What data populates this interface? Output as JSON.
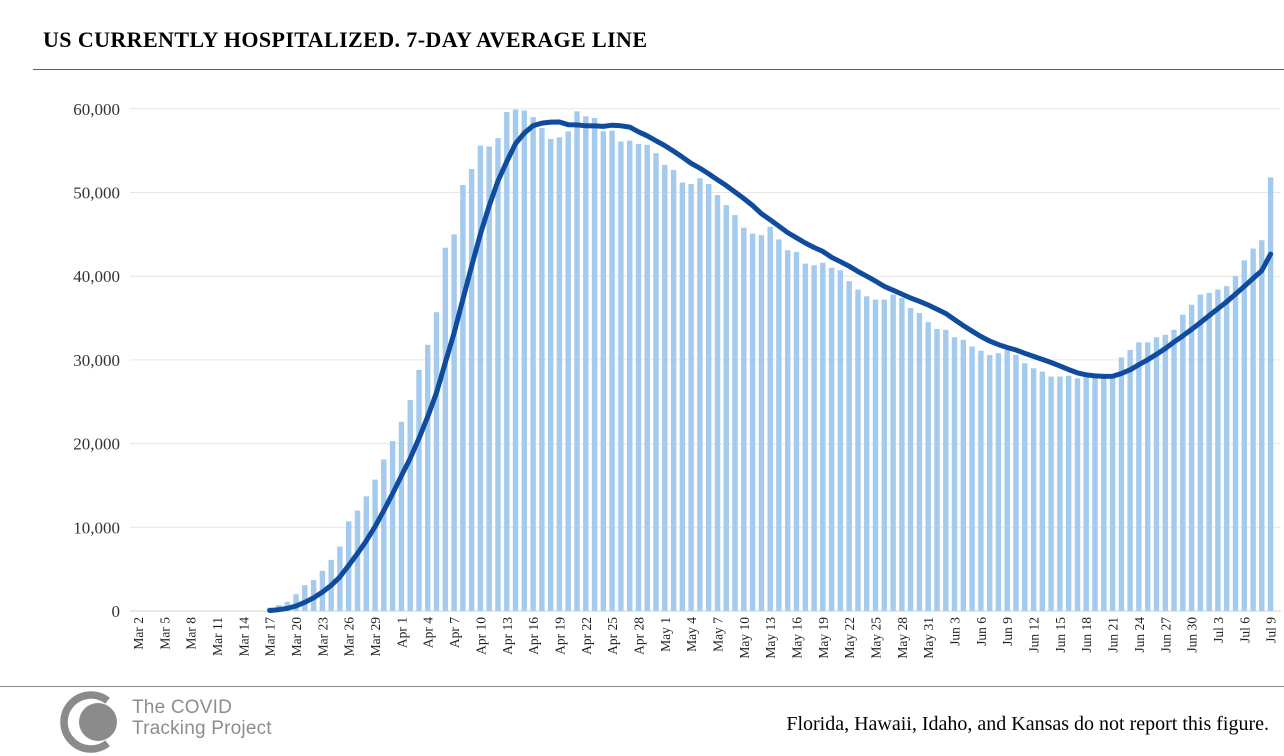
{
  "page": {
    "title": "US CURRENTLY HOSPITALIZED. 7-DAY AVERAGE LINE"
  },
  "chart_data": {
    "type": "bar",
    "title": "US CURRENTLY HOSPITALIZED. 7-DAY AVERAGE LINE",
    "xlabel": "",
    "ylabel": "",
    "ylim": [
      0,
      60000
    ],
    "y_tick_step": 10000,
    "y_tick_labels": [
      "0",
      "10,000",
      "20,000",
      "30,000",
      "40,000",
      "50,000",
      "60,000"
    ],
    "x_tick_every": 3,
    "grid": true,
    "legend": "none",
    "series": [
      {
        "name": "US currently hospitalized (daily)",
        "type": "bar",
        "color": "#A4CAED"
      },
      {
        "name": "7-day average line",
        "type": "line",
        "color": "#0F4C9E",
        "derived": "trailing-7-day-mean",
        "start_index": 15
      }
    ],
    "x": [
      "Mar 2",
      "Mar 3",
      "Mar 4",
      "Mar 5",
      "Mar 6",
      "Mar 7",
      "Mar 8",
      "Mar 9",
      "Mar 10",
      "Mar 11",
      "Mar 12",
      "Mar 13",
      "Mar 14",
      "Mar 15",
      "Mar 16",
      "Mar 17",
      "Mar 18",
      "Mar 19",
      "Mar 20",
      "Mar 21",
      "Mar 22",
      "Mar 23",
      "Mar 24",
      "Mar 25",
      "Mar 26",
      "Mar 27",
      "Mar 28",
      "Mar 29",
      "Mar 30",
      "Mar 31",
      "Apr 1",
      "Apr 2",
      "Apr 3",
      "Apr 4",
      "Apr 5",
      "Apr 6",
      "Apr 7",
      "Apr 8",
      "Apr 9",
      "Apr 10",
      "Apr 11",
      "Apr 12",
      "Apr 13",
      "Apr 14",
      "Apr 15",
      "Apr 16",
      "Apr 17",
      "Apr 18",
      "Apr 19",
      "Apr 20",
      "Apr 21",
      "Apr 22",
      "Apr 23",
      "Apr 24",
      "Apr 25",
      "Apr 26",
      "Apr 27",
      "Apr 28",
      "Apr 29",
      "Apr 30",
      "May 1",
      "May 2",
      "May 3",
      "May 4",
      "May 5",
      "May 6",
      "May 7",
      "May 8",
      "May 9",
      "May 10",
      "May 11",
      "May 12",
      "May 13",
      "May 14",
      "May 15",
      "May 16",
      "May 17",
      "May 18",
      "May 19",
      "May 20",
      "May 21",
      "May 22",
      "May 23",
      "May 24",
      "May 25",
      "May 26",
      "May 27",
      "May 28",
      "May 29",
      "May 30",
      "May 31",
      "Jun 1",
      "Jun 2",
      "Jun 3",
      "Jun 4",
      "Jun 5",
      "Jun 6",
      "Jun 7",
      "Jun 8",
      "Jun 9",
      "Jun 10",
      "Jun 11",
      "Jun 12",
      "Jun 13",
      "Jun 14",
      "Jun 15",
      "Jun 16",
      "Jun 17",
      "Jun 18",
      "Jun 19",
      "Jun 20",
      "Jun 21",
      "Jun 22",
      "Jun 23",
      "Jun 24",
      "Jun 25",
      "Jun 26",
      "Jun 27",
      "Jun 28",
      "Jun 29",
      "Jun 30",
      "Jul 1",
      "Jul 2",
      "Jul 3",
      "Jul 4",
      "Jul 5",
      "Jul 6",
      "Jul 7",
      "Jul 8",
      "Jul 9"
    ],
    "values": [
      0,
      0,
      0,
      0,
      0,
      0,
      0,
      0,
      0,
      0,
      0,
      0,
      0,
      0,
      0,
      400,
      700,
      1100,
      2000,
      3100,
      3700,
      4800,
      6100,
      7700,
      10700,
      12000,
      13700,
      15700,
      18100,
      20300,
      22600,
      25200,
      28800,
      31800,
      35700,
      43400,
      45000,
      50900,
      52800,
      55600,
      55500,
      56500,
      59600,
      59900,
      59800,
      59000,
      57700,
      56400,
      56600,
      57300,
      59700,
      59100,
      58900,
      57300,
      57400,
      56100,
      56200,
      55800,
      55700,
      54700,
      53300,
      52700,
      51200,
      51000,
      51700,
      51000,
      49700,
      48500,
      47300,
      45800,
      45100,
      44900,
      45900,
      44400,
      43100,
      42900,
      41500,
      41300,
      41600,
      41000,
      40700,
      39400,
      38400,
      37600,
      37200,
      37200,
      37800,
      37400,
      36200,
      35600,
      34500,
      33700,
      33600,
      32700,
      32400,
      31600,
      31100,
      30600,
      30800,
      31200,
      30600,
      29600,
      29000,
      28600,
      28000,
      28000,
      28100,
      27800,
      28000,
      28100,
      28200,
      28100,
      30300,
      31200,
      32100,
      32100,
      32700,
      33000,
      33600,
      35400,
      36600,
      37800,
      38000,
      38400,
      38800,
      40000,
      41900,
      43300,
      44300,
      51800
    ]
  },
  "footer": {
    "logo_line1": "The COVID",
    "logo_line2": "Tracking Project",
    "note": "Florida, Hawaii, Idaho, and Kansas do not report this figure."
  }
}
